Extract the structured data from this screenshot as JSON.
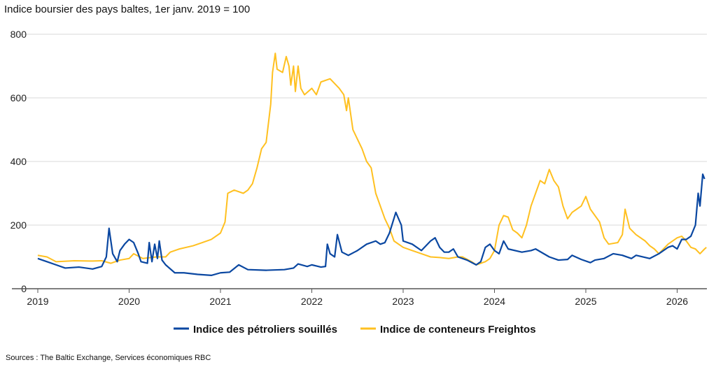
{
  "chart_data": {
    "type": "line",
    "title": "Indice boursier des pays baltes, 1er janv. 2019 = 100",
    "source": "Sources : The Baltic Exchange, Services économiques RBC",
    "xlim": [
      2019,
      2026.35
    ],
    "ylim": [
      0,
      800
    ],
    "x_ticks": [
      "2019",
      "2020",
      "2021",
      "2022",
      "2023",
      "2024",
      "2025",
      "2026"
    ],
    "y_ticks": [
      "0",
      "200",
      "400",
      "600",
      "800"
    ],
    "grid": "horizontal",
    "legend": "bottom",
    "series": [
      {
        "name": "Indice des pétroliers souillés",
        "color": "#0a47a1",
        "points": [
          [
            2019.0,
            95
          ],
          [
            2019.1,
            85
          ],
          [
            2019.2,
            75
          ],
          [
            2019.3,
            65
          ],
          [
            2019.45,
            68
          ],
          [
            2019.6,
            62
          ],
          [
            2019.7,
            70
          ],
          [
            2019.75,
            100
          ],
          [
            2019.78,
            190
          ],
          [
            2019.82,
            110
          ],
          [
            2019.87,
            85
          ],
          [
            2019.9,
            120
          ],
          [
            2019.95,
            140
          ],
          [
            2020.0,
            155
          ],
          [
            2020.05,
            145
          ],
          [
            2020.1,
            110
          ],
          [
            2020.13,
            85
          ],
          [
            2020.2,
            80
          ],
          [
            2020.22,
            145
          ],
          [
            2020.25,
            85
          ],
          [
            2020.28,
            140
          ],
          [
            2020.31,
            95
          ],
          [
            2020.33,
            150
          ],
          [
            2020.36,
            90
          ],
          [
            2020.4,
            75
          ],
          [
            2020.5,
            50
          ],
          [
            2020.6,
            50
          ],
          [
            2020.75,
            45
          ],
          [
            2020.9,
            42
          ],
          [
            2021.0,
            50
          ],
          [
            2021.1,
            52
          ],
          [
            2021.2,
            75
          ],
          [
            2021.3,
            60
          ],
          [
            2021.5,
            58
          ],
          [
            2021.7,
            60
          ],
          [
            2021.8,
            65
          ],
          [
            2021.85,
            78
          ],
          [
            2021.95,
            70
          ],
          [
            2022.0,
            75
          ],
          [
            2022.1,
            68
          ],
          [
            2022.15,
            70
          ],
          [
            2022.17,
            140
          ],
          [
            2022.2,
            110
          ],
          [
            2022.25,
            100
          ],
          [
            2022.28,
            170
          ],
          [
            2022.33,
            115
          ],
          [
            2022.4,
            105
          ],
          [
            2022.5,
            120
          ],
          [
            2022.6,
            140
          ],
          [
            2022.7,
            150
          ],
          [
            2022.75,
            140
          ],
          [
            2022.8,
            145
          ],
          [
            2022.85,
            175
          ],
          [
            2022.92,
            240
          ],
          [
            2022.98,
            200
          ],
          [
            2023.0,
            150
          ],
          [
            2023.1,
            140
          ],
          [
            2023.2,
            120
          ],
          [
            2023.3,
            150
          ],
          [
            2023.35,
            160
          ],
          [
            2023.4,
            130
          ],
          [
            2023.45,
            115
          ],
          [
            2023.5,
            115
          ],
          [
            2023.55,
            125
          ],
          [
            2023.6,
            100
          ],
          [
            2023.7,
            90
          ],
          [
            2023.8,
            75
          ],
          [
            2023.85,
            85
          ],
          [
            2023.9,
            130
          ],
          [
            2023.95,
            140
          ],
          [
            2024.0,
            120
          ],
          [
            2024.05,
            110
          ],
          [
            2024.1,
            150
          ],
          [
            2024.15,
            125
          ],
          [
            2024.3,
            115
          ],
          [
            2024.4,
            120
          ],
          [
            2024.45,
            125
          ],
          [
            2024.6,
            100
          ],
          [
            2024.7,
            90
          ],
          [
            2024.8,
            92
          ],
          [
            2024.85,
            105
          ],
          [
            2024.95,
            92
          ],
          [
            2025.05,
            82
          ],
          [
            2025.1,
            90
          ],
          [
            2025.2,
            95
          ],
          [
            2025.3,
            110
          ],
          [
            2025.4,
            105
          ],
          [
            2025.5,
            95
          ],
          [
            2025.55,
            105
          ],
          [
            2025.7,
            95
          ],
          [
            2025.8,
            110
          ],
          [
            2025.9,
            130
          ],
          [
            2025.95,
            135
          ],
          [
            2026.0,
            125
          ],
          [
            2026.05,
            155
          ],
          [
            2026.1,
            155
          ],
          [
            2026.15,
            165
          ],
          [
            2026.2,
            200
          ],
          [
            2026.23,
            300
          ],
          [
            2026.25,
            260
          ],
          [
            2026.28,
            360
          ],
          [
            2026.3,
            345
          ]
        ]
      },
      {
        "name": "Indice de conteneurs Freightos",
        "color": "#ffc020",
        "points": [
          [
            2019.0,
            105
          ],
          [
            2019.1,
            100
          ],
          [
            2019.2,
            85
          ],
          [
            2019.4,
            88
          ],
          [
            2019.6,
            87
          ],
          [
            2019.7,
            88
          ],
          [
            2019.8,
            80
          ],
          [
            2019.9,
            90
          ],
          [
            2020.0,
            95
          ],
          [
            2020.05,
            110
          ],
          [
            2020.15,
            95
          ],
          [
            2020.3,
            100
          ],
          [
            2020.4,
            100
          ],
          [
            2020.45,
            115
          ],
          [
            2020.55,
            125
          ],
          [
            2020.7,
            135
          ],
          [
            2020.8,
            145
          ],
          [
            2020.9,
            155
          ],
          [
            2021.0,
            175
          ],
          [
            2021.05,
            210
          ],
          [
            2021.08,
            300
          ],
          [
            2021.15,
            310
          ],
          [
            2021.25,
            300
          ],
          [
            2021.3,
            310
          ],
          [
            2021.35,
            330
          ],
          [
            2021.4,
            380
          ],
          [
            2021.45,
            440
          ],
          [
            2021.5,
            460
          ],
          [
            2021.55,
            580
          ],
          [
            2021.57,
            680
          ],
          [
            2021.6,
            740
          ],
          [
            2021.62,
            690
          ],
          [
            2021.68,
            680
          ],
          [
            2021.72,
            730
          ],
          [
            2021.75,
            700
          ],
          [
            2021.77,
            640
          ],
          [
            2021.8,
            700
          ],
          [
            2021.82,
            620
          ],
          [
            2021.85,
            700
          ],
          [
            2021.88,
            630
          ],
          [
            2021.92,
            610
          ],
          [
            2022.0,
            630
          ],
          [
            2022.05,
            610
          ],
          [
            2022.1,
            650
          ],
          [
            2022.2,
            660
          ],
          [
            2022.3,
            630
          ],
          [
            2022.35,
            610
          ],
          [
            2022.38,
            560
          ],
          [
            2022.4,
            600
          ],
          [
            2022.45,
            500
          ],
          [
            2022.5,
            470
          ],
          [
            2022.55,
            440
          ],
          [
            2022.6,
            400
          ],
          [
            2022.65,
            380
          ],
          [
            2022.7,
            300
          ],
          [
            2022.8,
            220
          ],
          [
            2022.85,
            190
          ],
          [
            2022.9,
            150
          ],
          [
            2023.0,
            130
          ],
          [
            2023.1,
            120
          ],
          [
            2023.2,
            110
          ],
          [
            2023.3,
            100
          ],
          [
            2023.4,
            98
          ],
          [
            2023.5,
            95
          ],
          [
            2023.6,
            100
          ],
          [
            2023.65,
            100
          ],
          [
            2023.75,
            85
          ],
          [
            2023.8,
            75
          ],
          [
            2023.9,
            85
          ],
          [
            2023.95,
            95
          ],
          [
            2024.0,
            120
          ],
          [
            2024.05,
            200
          ],
          [
            2024.1,
            230
          ],
          [
            2024.15,
            225
          ],
          [
            2024.2,
            185
          ],
          [
            2024.25,
            175
          ],
          [
            2024.3,
            160
          ],
          [
            2024.35,
            200
          ],
          [
            2024.4,
            260
          ],
          [
            2024.45,
            300
          ],
          [
            2024.5,
            340
          ],
          [
            2024.55,
            330
          ],
          [
            2024.6,
            375
          ],
          [
            2024.65,
            340
          ],
          [
            2024.7,
            320
          ],
          [
            2024.75,
            260
          ],
          [
            2024.8,
            220
          ],
          [
            2024.85,
            240
          ],
          [
            2024.9,
            250
          ],
          [
            2024.95,
            260
          ],
          [
            2025.0,
            290
          ],
          [
            2025.05,
            250
          ],
          [
            2025.15,
            210
          ],
          [
            2025.2,
            160
          ],
          [
            2025.25,
            140
          ],
          [
            2025.35,
            145
          ],
          [
            2025.4,
            170
          ],
          [
            2025.43,
            250
          ],
          [
            2025.48,
            190
          ],
          [
            2025.55,
            170
          ],
          [
            2025.65,
            150
          ],
          [
            2025.7,
            135
          ],
          [
            2025.75,
            125
          ],
          [
            2025.8,
            110
          ],
          [
            2025.85,
            125
          ],
          [
            2025.9,
            140
          ],
          [
            2026.0,
            160
          ],
          [
            2026.05,
            165
          ],
          [
            2026.1,
            150
          ],
          [
            2026.15,
            130
          ],
          [
            2026.2,
            125
          ],
          [
            2026.25,
            110
          ],
          [
            2026.3,
            125
          ],
          [
            2026.32,
            130
          ]
        ]
      }
    ]
  }
}
